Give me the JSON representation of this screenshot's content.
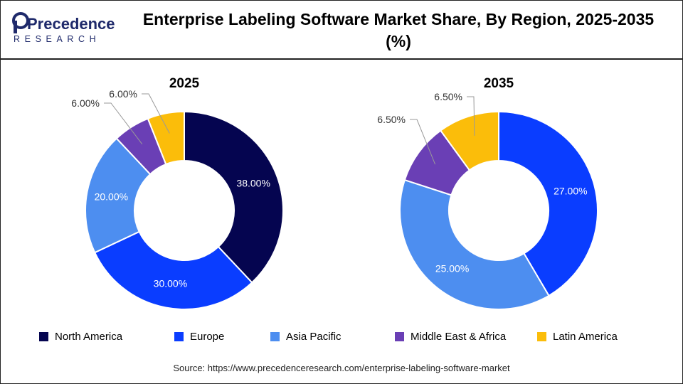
{
  "header": {
    "title": "Enterprise Labeling Software Market Share, By Region, 2025-2035 (%)",
    "logo_text_top": "Precedence",
    "logo_text_bottom": "RESEARCH"
  },
  "colors": {
    "North America": "#050550",
    "Europe": "#0a3dff",
    "Asia Pacific": "#4d8ef0",
    "Middle East & Africa": "#6a3fb5",
    "Latin America": "#fbbd0a"
  },
  "chart_data": [
    {
      "type": "pie",
      "title": "2025",
      "categories": [
        "North America",
        "Europe",
        "Asia Pacific",
        "Middle East & Africa",
        "Latin America"
      ],
      "values": [
        38,
        30,
        20,
        6,
        6
      ],
      "labels": [
        "38.00%",
        "30.00%",
        "20.00%",
        "6.00%",
        "6.00%"
      ]
    },
    {
      "type": "pie",
      "title": "2035",
      "categories": [
        "North America",
        "Europe",
        "Asia Pacific",
        "Middle East & Africa",
        "Latin America"
      ],
      "values": [
        0,
        27,
        25,
        6.5,
        6.5
      ],
      "labels": [
        "0",
        "27.00%",
        "25.00%",
        "6.50%",
        "6.50%"
      ]
    }
  ],
  "legend": {
    "position": "bottom",
    "items": [
      "North America",
      "Europe",
      "Asia Pacific",
      "Middle East & Africa",
      "Latin America"
    ]
  },
  "source": "Source: https://www.precedenceresearch.com/enterprise-labeling-software-market"
}
